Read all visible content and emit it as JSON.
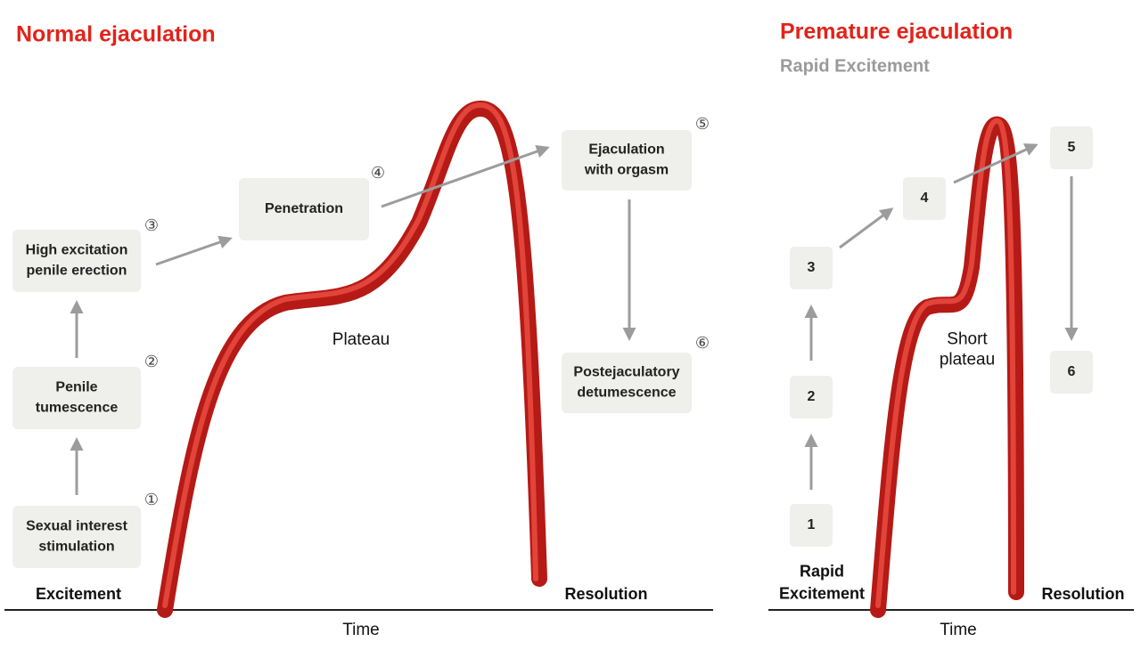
{
  "left": {
    "title": "Normal ejaculation",
    "steps": [
      {
        "marker": "①",
        "lines": [
          "Sexual interest",
          "stimulation"
        ]
      },
      {
        "marker": "②",
        "lines": [
          "Penile",
          "tumescence"
        ]
      },
      {
        "marker": "③",
        "lines": [
          "High excitation",
          "penile erection"
        ]
      },
      {
        "marker": "④",
        "lines": [
          "Penetration"
        ]
      },
      {
        "marker": "⑤",
        "lines": [
          "Ejaculation",
          "with orgasm"
        ]
      },
      {
        "marker": "⑥",
        "lines": [
          "Postejaculatory",
          "detumescence"
        ]
      }
    ],
    "curve_label": [
      "Plateau"
    ],
    "start_label": [
      "Excitement"
    ],
    "end_label": "Resolution",
    "axis_label": "Time"
  },
  "right": {
    "title": "Premature ejaculation",
    "subtitle": "Rapid Excitement",
    "steps": [
      "1",
      "2",
      "3",
      "4",
      "5",
      "6"
    ],
    "curve_label": [
      "Short",
      "plateau"
    ],
    "start_label": [
      "Rapid",
      "Excitement"
    ],
    "end_label": "Resolution",
    "axis_label": "Time"
  }
}
